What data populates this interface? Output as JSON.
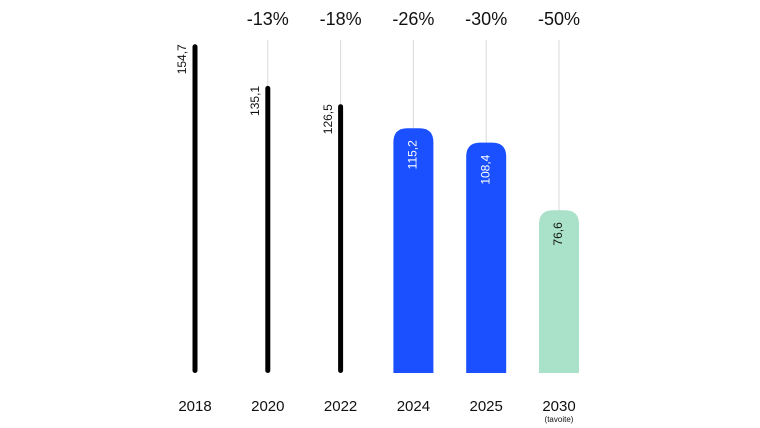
{
  "chart_data": {
    "type": "bar",
    "categories": [
      "2018",
      "2020",
      "2022",
      "2024",
      "2025",
      "2030"
    ],
    "category_notes": [
      null,
      null,
      null,
      null,
      null,
      "(tavoite)"
    ],
    "values": [
      154.7,
      135.1,
      126.5,
      115.2,
      108.4,
      76.6
    ],
    "value_labels": [
      "154,7",
      "135,1",
      "126,5",
      "115,2",
      "108,4",
      "76,6"
    ],
    "changes": [
      null,
      "-13%",
      "-18%",
      "-26%",
      "-30%",
      "-50%"
    ],
    "colors": [
      "#000000",
      "#000000",
      "#000000",
      "#1a50ff",
      "#1a50ff",
      "#a9e2c9"
    ],
    "ylim": [
      0,
      160
    ]
  }
}
